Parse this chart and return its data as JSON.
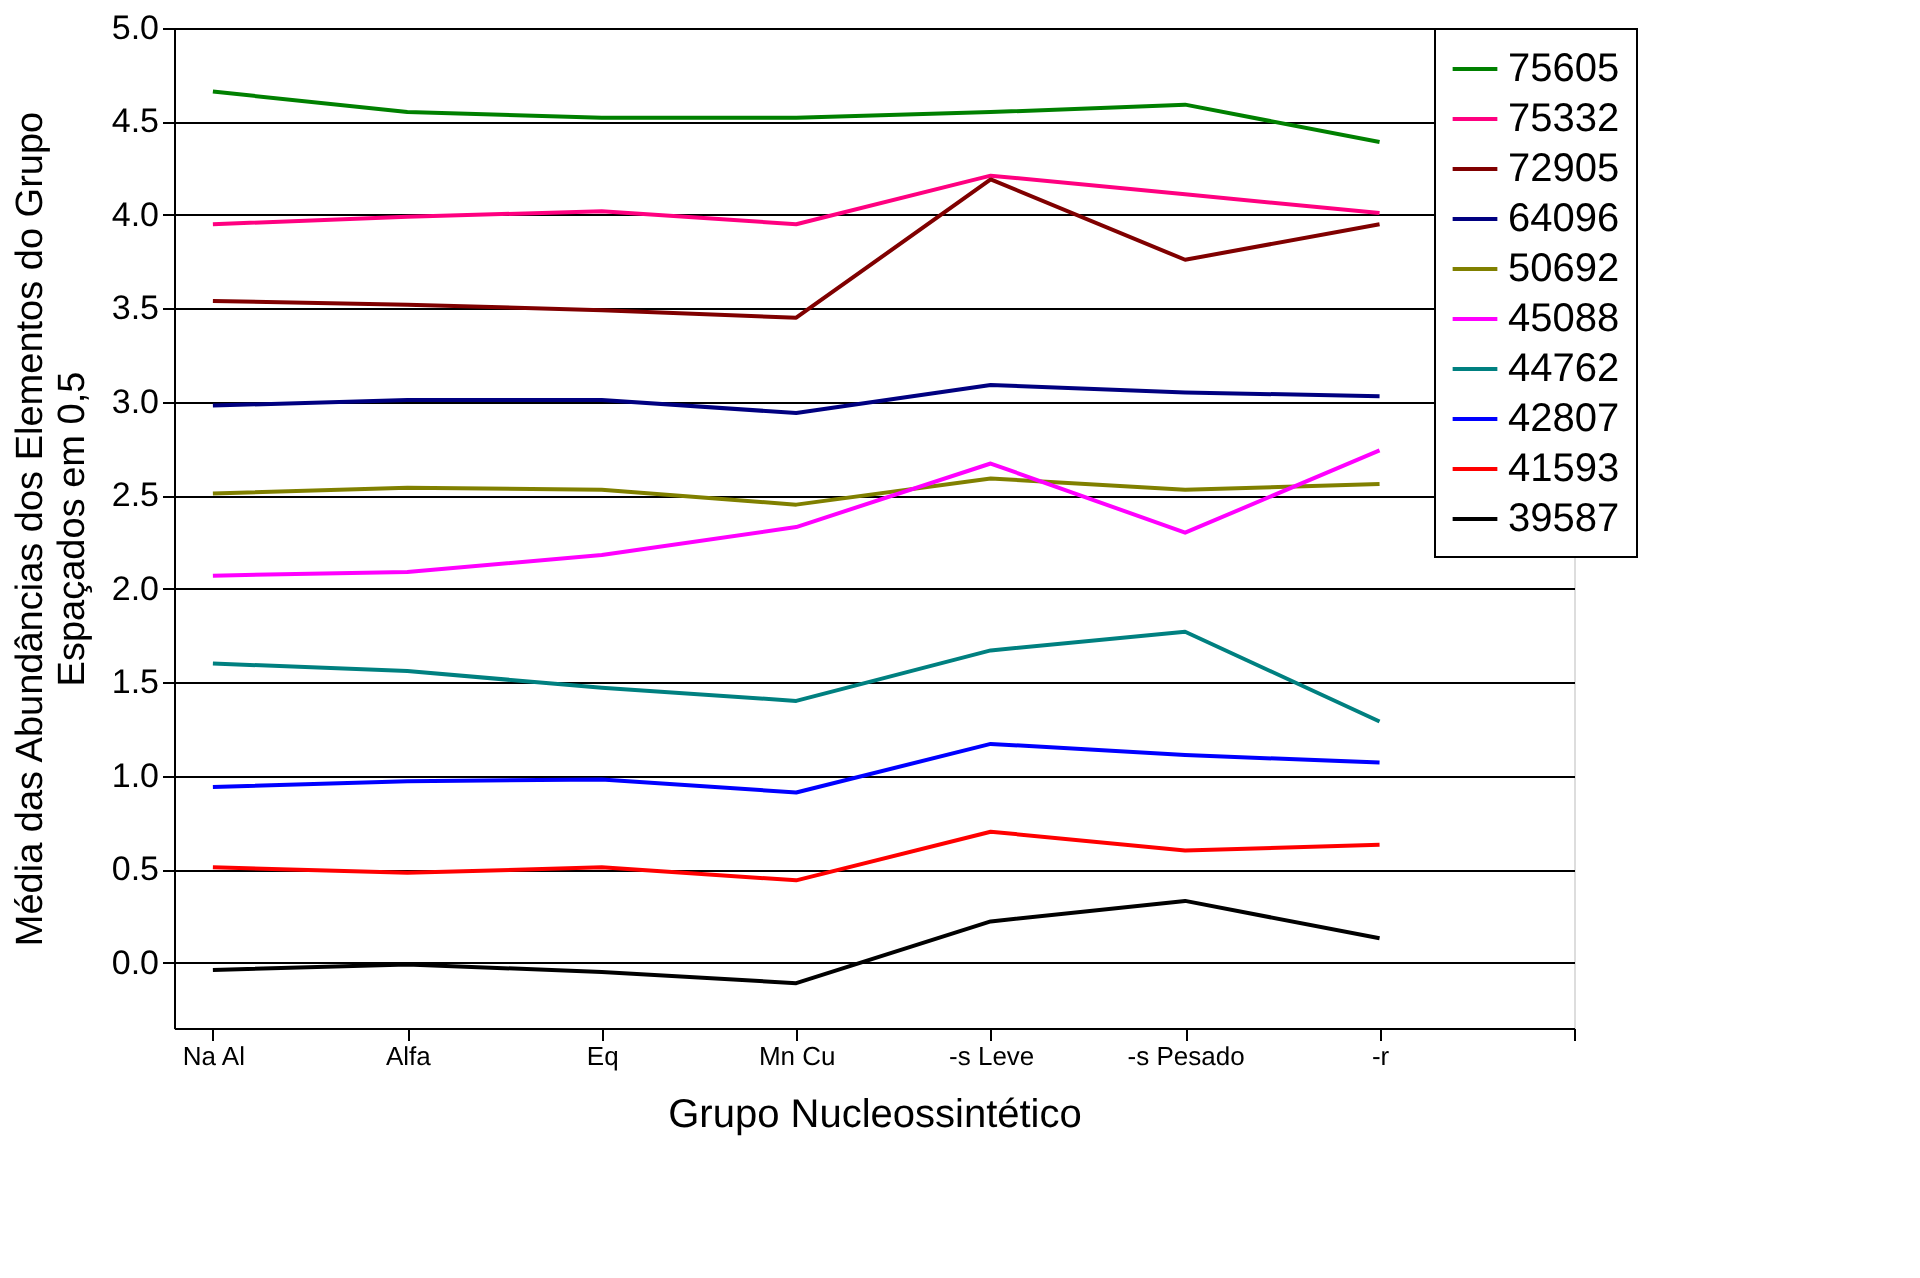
{
  "chart_data": {
    "type": "line",
    "xlabel": "Grupo Nucleossintético",
    "ylabel": "Média das Abundâncias dos Elementos do Grupo\nEspaçados em 0,5",
    "categories": [
      "Na Al",
      "Alfa",
      "Eq",
      "Mn Cu",
      "-s Leve",
      "-s Pesado",
      "-r"
    ],
    "ylim": [
      -0.35,
      5.0
    ],
    "yticks": [
      {
        "value": 0.0,
        "label": "0.0"
      },
      0.5,
      {
        "value": 1.0,
        "label": "1.0"
      },
      1.5,
      {
        "value": 2.0,
        "label": "2.0"
      },
      2.5,
      {
        "value": 3.0,
        "label": "3.0"
      },
      3.5,
      {
        "value": 4.0,
        "label": "4.0"
      },
      4.5,
      {
        "value": 5.0,
        "label": "5.0"
      }
    ],
    "grid": "y",
    "legend": "right",
    "marker": "none",
    "line_style": "solid",
    "series": [
      {
        "name": "75605",
        "color": "#008000",
        "values": [
          4.66,
          4.55,
          4.52,
          4.52,
          4.55,
          4.59,
          4.39
        ]
      },
      {
        "name": "75332",
        "color": "#ff0080",
        "values": [
          3.95,
          3.99,
          4.02,
          3.95,
          4.21,
          4.11,
          4.01
        ]
      },
      {
        "name": "72905",
        "color": "#800000",
        "values": [
          3.54,
          3.52,
          3.49,
          3.45,
          4.19,
          3.76,
          3.95
        ]
      },
      {
        "name": "64096",
        "color": "#000080",
        "values": [
          2.98,
          3.01,
          3.01,
          2.94,
          3.09,
          3.05,
          3.03
        ]
      },
      {
        "name": "50692",
        "color": "#808000",
        "values": [
          2.51,
          2.54,
          2.53,
          2.45,
          2.59,
          2.53,
          2.56
        ]
      },
      {
        "name": "45088",
        "color": "#ff00ff",
        "values": [
          2.07,
          2.09,
          2.18,
          2.33,
          2.67,
          2.3,
          2.74
        ]
      },
      {
        "name": "44762",
        "color": "#008080",
        "values": [
          1.6,
          1.56,
          1.47,
          1.4,
          1.67,
          1.77,
          1.29
        ]
      },
      {
        "name": "42807",
        "color": "#0000ff",
        "values": [
          0.94,
          0.97,
          0.98,
          0.91,
          1.17,
          1.11,
          1.07
        ]
      },
      {
        "name": "41593",
        "color": "#ff0000",
        "values": [
          0.51,
          0.48,
          0.51,
          0.44,
          0.7,
          0.6,
          0.63
        ]
      },
      {
        "name": "39587",
        "color": "#000000",
        "values": [
          -0.04,
          -0.01,
          -0.05,
          -0.11,
          0.22,
          0.33,
          0.13
        ]
      }
    ]
  }
}
